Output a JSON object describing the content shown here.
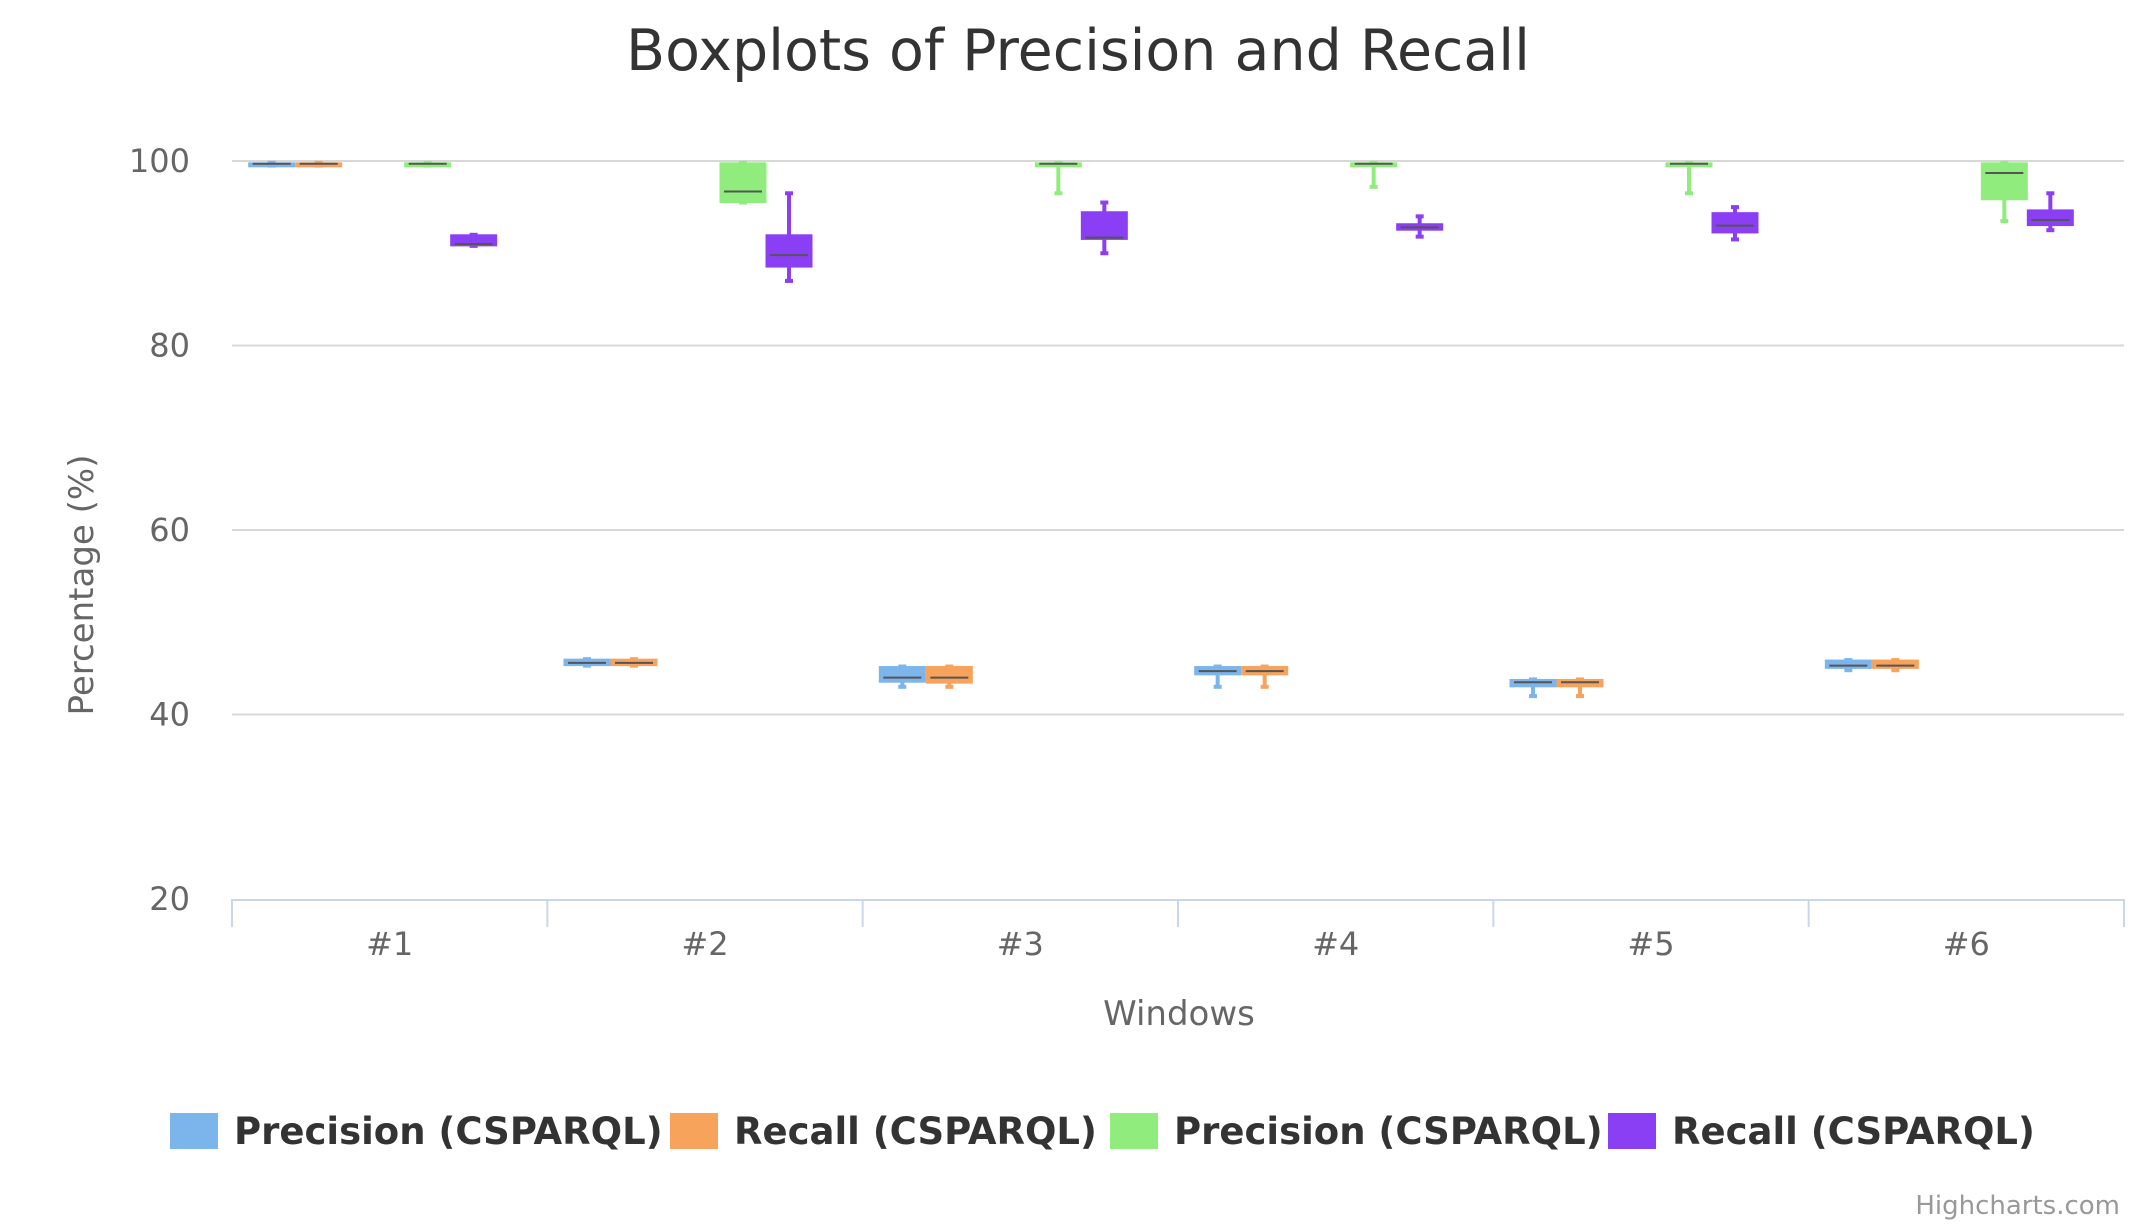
{
  "credits": "Highcharts.com",
  "colors": {
    "grid": "#d8d8d8",
    "axis_line": "#ccd6eb",
    "median": "#555555"
  },
  "chart_data": {
    "type": "boxplot",
    "title": "Boxplots of Precision and Recall",
    "xlabel": "Windows",
    "ylabel": "Percentage (%)",
    "categories": [
      "#1",
      "#2",
      "#3",
      "#4",
      "#5",
      "#6"
    ],
    "ylim": [
      20,
      100
    ],
    "yticks": [
      20,
      40,
      60,
      80,
      100
    ],
    "grid": true,
    "legend_position": "bottom",
    "series": [
      {
        "name": "Precision (CSPARQL)",
        "color": "#7cb5ec",
        "boxes": [
          {
            "low": 99.5,
            "q1": 99.5,
            "median": 99.7,
            "q3": 99.8,
            "high": 99.8
          },
          {
            "low": 45.3,
            "q1": 45.3,
            "median": 45.6,
            "q3": 46.0,
            "high": 46.0
          },
          {
            "low": 43.0,
            "q1": 43.5,
            "median": 44.0,
            "q3": 45.2,
            "high": 45.2
          },
          {
            "low": 43.0,
            "q1": 44.3,
            "median": 44.7,
            "q3": 45.2,
            "high": 45.2
          },
          {
            "low": 42.0,
            "q1": 43.0,
            "median": 43.5,
            "q3": 43.8,
            "high": 43.8
          },
          {
            "low": 44.8,
            "q1": 45.0,
            "median": 45.3,
            "q3": 45.9,
            "high": 45.9
          }
        ]
      },
      {
        "name": "Recall (CSPARQL)",
        "color": "#f7a35c",
        "boxes": [
          {
            "low": 99.5,
            "q1": 99.5,
            "median": 99.7,
            "q3": 99.8,
            "high": 99.8
          },
          {
            "low": 45.3,
            "q1": 45.3,
            "median": 45.6,
            "q3": 46.0,
            "high": 46.0
          },
          {
            "low": 43.0,
            "q1": 43.4,
            "median": 44.0,
            "q3": 45.2,
            "high": 45.2
          },
          {
            "low": 43.0,
            "q1": 44.3,
            "median": 44.7,
            "q3": 45.2,
            "high": 45.2
          },
          {
            "low": 42.0,
            "q1": 43.0,
            "median": 43.5,
            "q3": 43.8,
            "high": 43.8
          },
          {
            "low": 44.8,
            "q1": 45.0,
            "median": 45.3,
            "q3": 45.9,
            "high": 45.9
          }
        ]
      },
      {
        "name": "Precision (CSPARQL)",
        "color": "#90ed7d",
        "boxes": [
          {
            "low": 99.5,
            "q1": 99.5,
            "median": 99.7,
            "q3": 99.8,
            "high": 99.8
          },
          {
            "low": 95.5,
            "q1": 95.5,
            "median": 96.7,
            "q3": 99.8,
            "high": 99.8
          },
          {
            "low": 96.5,
            "q1": 99.5,
            "median": 99.7,
            "q3": 99.8,
            "high": 99.8
          },
          {
            "low": 97.2,
            "q1": 99.5,
            "median": 99.7,
            "q3": 99.8,
            "high": 99.8
          },
          {
            "low": 96.5,
            "q1": 99.5,
            "median": 99.7,
            "q3": 99.8,
            "high": 99.8
          },
          {
            "low": 93.5,
            "q1": 95.8,
            "median": 98.7,
            "q3": 99.8,
            "high": 99.8
          }
        ]
      },
      {
        "name": "Recall (CSPARQL)",
        "color": "#8b3ff5",
        "boxes": [
          {
            "low": 90.8,
            "q1": 90.8,
            "median": 91.0,
            "q3": 92.0,
            "high": 92.0
          },
          {
            "low": 87.0,
            "q1": 88.5,
            "median": 89.8,
            "q3": 92.0,
            "high": 96.5
          },
          {
            "low": 90.0,
            "q1": 91.5,
            "median": 91.7,
            "q3": 94.5,
            "high": 95.5
          },
          {
            "low": 91.8,
            "q1": 92.5,
            "median": 92.8,
            "q3": 93.2,
            "high": 94.0
          },
          {
            "low": 91.5,
            "q1": 92.2,
            "median": 93.0,
            "q3": 94.4,
            "high": 95.0
          },
          {
            "low": 92.5,
            "q1": 93.0,
            "median": 93.6,
            "q3": 94.7,
            "high": 96.5
          }
        ]
      }
    ]
  }
}
